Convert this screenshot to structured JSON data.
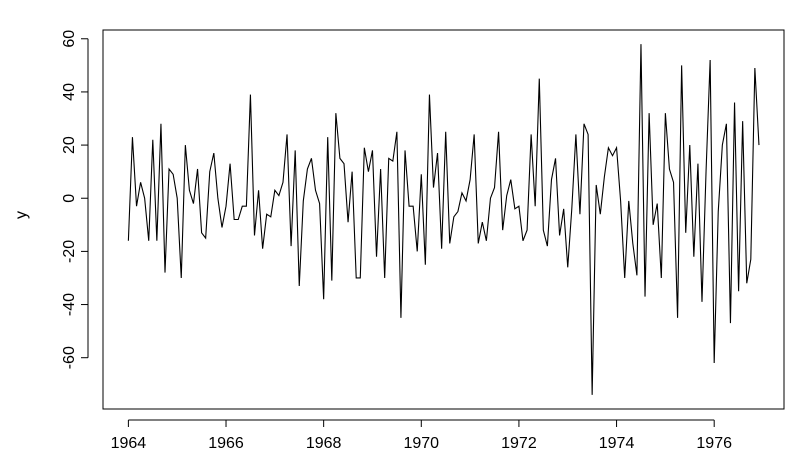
{
  "chart_data": {
    "type": "line",
    "y_label": "y",
    "xlim": [
      1963.48,
      1977.43
    ],
    "ylim": [
      -79.3,
      63.3
    ],
    "xticks": [
      1964,
      1966,
      1968,
      1970,
      1972,
      1974,
      1976
    ],
    "yticks": [
      -60,
      -40,
      -20,
      0,
      20,
      40,
      60
    ],
    "color": "#000000",
    "x": [
      1964,
      1964.083,
      1964.167,
      1964.25,
      1964.333,
      1964.417,
      1964.5,
      1964.583,
      1964.667,
      1964.75,
      1964.833,
      1964.917,
      1965,
      1965.083,
      1965.167,
      1965.25,
      1965.333,
      1965.417,
      1965.5,
      1965.583,
      1965.667,
      1965.75,
      1965.833,
      1965.917,
      1966,
      1966.083,
      1966.167,
      1966.25,
      1966.333,
      1966.417,
      1966.5,
      1966.583,
      1966.667,
      1966.75,
      1966.833,
      1966.917,
      1967,
      1967.083,
      1967.167,
      1967.25,
      1967.333,
      1967.417,
      1967.5,
      1967.583,
      1967.667,
      1967.75,
      1967.833,
      1967.917,
      1968,
      1968.083,
      1968.167,
      1968.25,
      1968.333,
      1968.417,
      1968.5,
      1968.583,
      1968.667,
      1968.75,
      1968.833,
      1968.917,
      1969,
      1969.083,
      1969.167,
      1969.25,
      1969.333,
      1969.417,
      1969.5,
      1969.583,
      1969.667,
      1969.75,
      1969.833,
      1969.917,
      1970,
      1970.083,
      1970.167,
      1970.25,
      1970.333,
      1970.417,
      1970.5,
      1970.583,
      1970.667,
      1970.75,
      1970.833,
      1970.917,
      1971,
      1971.083,
      1971.167,
      1971.25,
      1971.333,
      1971.417,
      1971.5,
      1971.583,
      1971.667,
      1971.75,
      1971.833,
      1971.917,
      1972,
      1972.083,
      1972.167,
      1972.25,
      1972.333,
      1972.417,
      1972.5,
      1972.583,
      1972.667,
      1972.75,
      1972.833,
      1972.917,
      1973,
      1973.083,
      1973.167,
      1973.25,
      1973.333,
      1973.417,
      1973.5,
      1973.583,
      1973.667,
      1973.75,
      1973.833,
      1973.917,
      1974,
      1974.083,
      1974.167,
      1974.25,
      1974.333,
      1974.417,
      1974.5,
      1974.583,
      1974.667,
      1974.75,
      1974.833,
      1974.917,
      1975,
      1975.083,
      1975.167,
      1975.25,
      1975.333,
      1975.417,
      1975.5,
      1975.583,
      1975.667,
      1975.75,
      1975.833,
      1975.917,
      1976,
      1976.083,
      1976.167,
      1976.25,
      1976.333,
      1976.417,
      1976.5,
      1976.583,
      1976.667,
      1976.75,
      1976.833,
      1976.917
    ],
    "values": [
      -16,
      23,
      -3,
      6,
      0,
      -16,
      22,
      -16,
      28,
      -28,
      11,
      9,
      0,
      -30,
      20,
      3,
      -2,
      11,
      -13,
      -15,
      10,
      17,
      0,
      -11,
      -3,
      13,
      -8,
      -8,
      -3,
      -3,
      39,
      -14,
      3,
      -19,
      -6,
      -7,
      3,
      1,
      6,
      24,
      -18,
      18,
      -33,
      -1,
      11,
      15,
      3,
      -2,
      -38,
      23,
      -31,
      32,
      15,
      13,
      -9,
      10,
      -30,
      -30,
      19,
      10,
      18,
      -22,
      11,
      -30,
      15,
      14,
      25,
      -45,
      18,
      -3,
      -3,
      -20,
      9,
      -25,
      39,
      4,
      17,
      -19,
      25,
      -17,
      -7,
      -5,
      2,
      -1,
      7,
      24,
      -17,
      -9,
      -16,
      0,
      4,
      25,
      -12,
      1,
      7,
      -4,
      -3,
      -16,
      -12,
      24,
      -3,
      45,
      -12,
      -18,
      7,
      15,
      -14,
      -4,
      -26,
      -4,
      24,
      -6,
      28,
      24,
      -74,
      5,
      -6,
      8,
      19,
      16,
      19,
      -1,
      -30,
      -1,
      -17,
      -29,
      58,
      -37,
      32,
      -10,
      -2,
      -30,
      32,
      11,
      6,
      -45,
      50,
      -13,
      20,
      -22,
      13,
      -39,
      10,
      52,
      -62,
      -5,
      20,
      28,
      -47,
      36,
      -35,
      29,
      -32,
      -23,
      49,
      20
    ]
  }
}
